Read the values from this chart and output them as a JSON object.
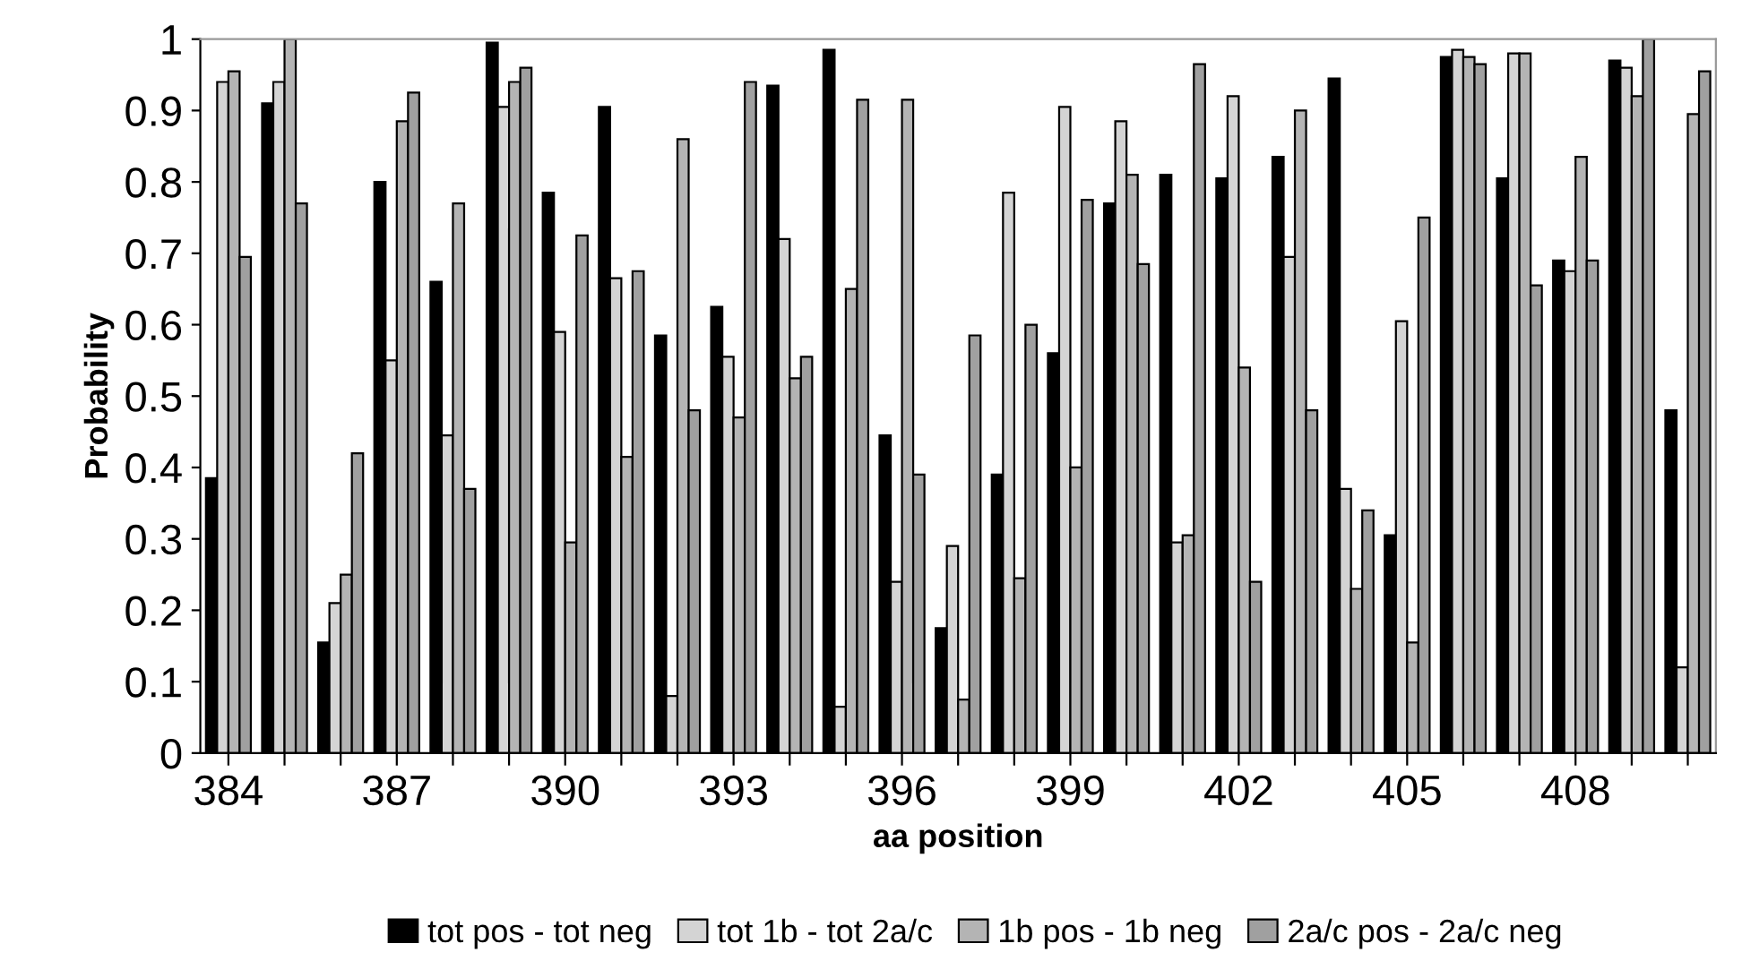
{
  "chart_data": {
    "type": "bar",
    "xlabel": "aa position",
    "ylabel": "Probability",
    "categories": [
      "384",
      null,
      null,
      "387",
      null,
      null,
      "390",
      null,
      null,
      "393",
      null,
      null,
      "396",
      null,
      null,
      "399",
      null,
      null,
      "402",
      null,
      null,
      "405",
      null,
      null,
      "408",
      null,
      null
    ],
    "series": [
      {
        "name": "tot pos - tot neg",
        "color": "#000000",
        "values": [
          0.385,
          0.91,
          0.155,
          0.8,
          0.66,
          0.995,
          0.785,
          0.905,
          0.585,
          0.625,
          0.935,
          0.985,
          0.445,
          0.175,
          0.39,
          0.56,
          0.77,
          0.81,
          0.805,
          0.835,
          0.945,
          0.305,
          0.975,
          0.805,
          0.69,
          0.97,
          0.48
        ]
      },
      {
        "name": "tot 1b - tot 2a/c",
        "color": "#d4d4d4",
        "values": [
          0.94,
          0.94,
          0.21,
          0.55,
          0.445,
          0.905,
          0.59,
          0.665,
          0.08,
          0.555,
          0.72,
          0.065,
          0.24,
          0.29,
          0.785,
          0.905,
          0.885,
          0.295,
          0.92,
          0.695,
          0.37,
          0.605,
          0.985,
          0.98,
          0.675,
          0.96,
          0.12
        ]
      },
      {
        "name": "1b pos - 1b neg",
        "color": "#b4b4b4",
        "values": [
          0.955,
          1.0,
          0.25,
          0.885,
          0.77,
          0.94,
          0.295,
          0.415,
          0.86,
          0.47,
          0.525,
          0.65,
          0.915,
          0.075,
          0.245,
          0.4,
          0.81,
          0.305,
          0.54,
          0.9,
          0.23,
          0.155,
          0.975,
          0.98,
          0.835,
          0.92,
          0.895
        ]
      },
      {
        "name": "2a/c pos - 2a/c neg",
        "color": "#a0a0a0",
        "values": [
          0.695,
          0.77,
          0.42,
          0.925,
          0.37,
          0.96,
          0.725,
          0.675,
          0.48,
          0.94,
          0.555,
          0.915,
          0.39,
          0.585,
          0.6,
          0.775,
          0.685,
          0.965,
          0.24,
          0.48,
          0.34,
          0.75,
          0.965,
          0.655,
          0.69,
          1.0,
          0.955
        ]
      }
    ],
    "ylim": [
      0,
      1
    ],
    "yticks": [
      0,
      0.1,
      0.2,
      0.3,
      0.4,
      0.5,
      0.6,
      0.7,
      0.8,
      0.9,
      1
    ],
    "legend": "bottom",
    "grid": false
  }
}
